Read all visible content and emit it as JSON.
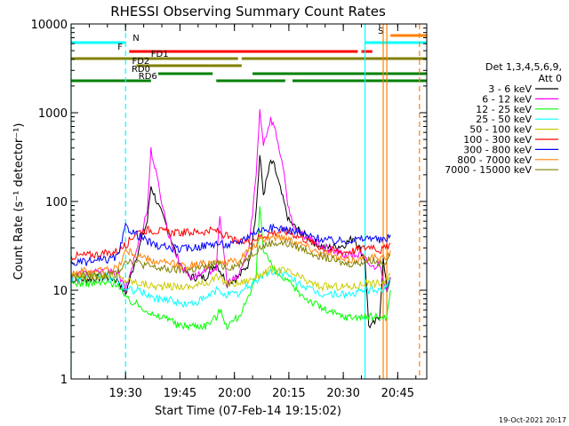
{
  "chart_data": {
    "type": "line",
    "title": "RHESSI Observing Summary Count Rates",
    "xlabel": "Start Time (07-Feb-14 19:15:02)",
    "ylabel": "Count Rate (s⁻¹ detector⁻¹)",
    "ylim": [
      1,
      10000
    ],
    "yscale": "log",
    "y_ticks": [
      1,
      10,
      100,
      1000,
      10000
    ],
    "y_tick_labels": [
      "1",
      "10",
      "100",
      "1000",
      "10000"
    ],
    "xlim": [
      "19:15",
      "20:53"
    ],
    "x_ticks": [
      "19:30",
      "19:45",
      "20:00",
      "20:15",
      "20:30",
      "20:45"
    ],
    "legend_title": [
      "Det 1,3,4,5,6,9,",
      "Att 0"
    ],
    "legend_position": "right",
    "timestamp": "19-Oct-2021 20:17",
    "series": [
      {
        "name": "3 - 6 keV",
        "color": "#000000",
        "x": [
          "19:15",
          "19:25",
          "19:28",
          "19:30",
          "19:33",
          "19:36",
          "19:37",
          "19:39",
          "19:42",
          "19:44",
          "19:46",
          "19:48",
          "19:52",
          "19:55",
          "19:58",
          "20:01",
          "20:04",
          "20:06",
          "20:07",
          "20:08",
          "20:10",
          "20:11",
          "20:13",
          "20:15",
          "20:17",
          "20:20",
          "20:22",
          "20:25",
          "20:30",
          "20:33",
          "20:36",
          "20:37",
          "20:38",
          "20:40",
          "20:41",
          "20:42",
          "20:43"
        ],
        "values": [
          13,
          14,
          13,
          9,
          24,
          60,
          150,
          90,
          45,
          25,
          17,
          14,
          14,
          20,
          12,
          14,
          20,
          80,
          330,
          120,
          280,
          250,
          120,
          60,
          50,
          40,
          35,
          30,
          32,
          40,
          22,
          4,
          4,
          5,
          22,
          10,
          14
        ]
      },
      {
        "name": "6 - 12 keV",
        "color": "#ff00ff",
        "x": [
          "19:15",
          "19:25",
          "19:28",
          "19:30",
          "19:33",
          "19:36",
          "19:37",
          "19:38",
          "19:40",
          "19:42",
          "19:44",
          "19:46",
          "19:48",
          "19:52",
          "19:55",
          "19:56",
          "19:58",
          "20:01",
          "20:04",
          "20:06",
          "20:07",
          "20:08",
          "20:10",
          "20:11",
          "20:13",
          "20:15",
          "20:17",
          "20:20",
          "20:25",
          "20:30",
          "20:35",
          "20:38",
          "20:40",
          "20:42",
          "20:43"
        ],
        "values": [
          15,
          16,
          15,
          10,
          28,
          80,
          380,
          250,
          100,
          40,
          25,
          17,
          14,
          16,
          18,
          65,
          12,
          14,
          30,
          200,
          1100,
          450,
          850,
          700,
          300,
          80,
          45,
          40,
          30,
          25,
          25,
          18,
          20,
          10,
          14
        ]
      },
      {
        "name": "12 - 25 keV",
        "color": "#00ff00",
        "x": [
          "19:15",
          "19:25",
          "19:28",
          "19:30",
          "19:33",
          "19:36",
          "19:38",
          "19:40",
          "19:42",
          "19:44",
          "19:46",
          "19:48",
          "19:52",
          "19:55",
          "19:56",
          "19:58",
          "20:01",
          "20:04",
          "20:06",
          "20:07",
          "20:08",
          "20:10",
          "20:11",
          "20:13",
          "20:15",
          "20:17",
          "20:20",
          "20:25",
          "20:30",
          "20:35",
          "20:38",
          "20:40",
          "20:42",
          "20:43"
        ],
        "values": [
          12,
          12,
          12,
          8,
          7,
          6,
          5,
          5,
          5,
          4,
          4,
          4,
          4,
          5,
          6,
          4,
          5,
          8,
          15,
          90,
          30,
          20,
          16,
          14,
          12,
          10,
          8,
          6,
          5,
          5,
          5,
          5,
          5,
          10
        ]
      },
      {
        "name": "25 - 50 keV",
        "color": "#00ffff",
        "x": [
          "19:15",
          "19:25",
          "19:28",
          "19:30",
          "19:33",
          "19:36",
          "19:38",
          "19:40",
          "19:42",
          "19:45",
          "19:48",
          "19:52",
          "19:55",
          "19:58",
          "20:01",
          "20:04",
          "20:07",
          "20:10",
          "20:13",
          "20:15",
          "20:18",
          "20:21",
          "20:24",
          "20:27",
          "20:30",
          "20:33",
          "20:36",
          "20:38",
          "20:40",
          "20:42",
          "20:43"
        ],
        "values": [
          14,
          14,
          13,
          10,
          10,
          9,
          8,
          8,
          8,
          7,
          7,
          8,
          10,
          9,
          9,
          11,
          14,
          16,
          16,
          14,
          12,
          10,
          9,
          9,
          9,
          9,
          10,
          10,
          10,
          11,
          13
        ]
      },
      {
        "name": "50 - 100 keV",
        "color": "#cccc00",
        "x": [
          "19:15",
          "19:25",
          "19:28",
          "19:30",
          "19:34",
          "19:38",
          "19:42",
          "19:45",
          "19:48",
          "19:52",
          "19:55",
          "19:58",
          "20:01",
          "20:04",
          "20:07",
          "20:10",
          "20:13",
          "20:15",
          "20:18",
          "20:21",
          "20:24",
          "20:27",
          "20:30",
          "20:33",
          "20:36",
          "20:38",
          "20:40",
          "20:42",
          "20:43"
        ],
        "values": [
          14,
          15,
          14,
          13,
          12,
          11,
          11,
          11,
          11,
          12,
          14,
          12,
          12,
          13,
          15,
          17,
          17,
          16,
          14,
          12,
          11,
          11,
          11,
          11,
          12,
          12,
          12,
          13,
          15
        ]
      },
      {
        "name": "100 - 300 keV",
        "color": "#ff0000",
        "x": [
          "19:15",
          "19:25",
          "19:28",
          "19:30",
          "19:33",
          "19:36",
          "19:40",
          "19:44",
          "19:48",
          "19:52",
          "19:55",
          "19:58",
          "20:01",
          "20:04",
          "20:07",
          "20:10",
          "20:13",
          "20:15",
          "20:18",
          "20:21",
          "20:24",
          "20:27",
          "20:30",
          "20:33",
          "20:36",
          "20:38",
          "20:40",
          "20:42",
          "20:43"
        ],
        "values": [
          24,
          26,
          28,
          32,
          45,
          48,
          46,
          44,
          45,
          46,
          47,
          40,
          34,
          36,
          40,
          44,
          46,
          45,
          40,
          35,
          30,
          28,
          27,
          28,
          30,
          32,
          28,
          30,
          34
        ]
      },
      {
        "name": "300 - 800 keV",
        "color": "#0000ff",
        "x": [
          "19:15",
          "19:25",
          "19:28",
          "19:30",
          "19:34",
          "19:38",
          "19:42",
          "19:45",
          "19:48",
          "19:52",
          "19:55",
          "19:58",
          "20:01",
          "20:04",
          "20:07",
          "20:10",
          "20:13",
          "20:15",
          "20:18",
          "20:21",
          "20:24",
          "20:27",
          "20:30",
          "20:33",
          "20:36",
          "20:38",
          "20:40",
          "20:42",
          "20:43"
        ],
        "values": [
          20,
          22,
          24,
          52,
          40,
          32,
          30,
          29,
          30,
          32,
          34,
          32,
          34,
          42,
          48,
          50,
          50,
          48,
          44,
          40,
          38,
          36,
          36,
          37,
          38,
          40,
          36,
          38,
          42
        ]
      },
      {
        "name": "800 - 7000 keV",
        "color": "#ff8000",
        "x": [
          "19:15",
          "19:25",
          "19:28",
          "19:30",
          "19:34",
          "19:38",
          "19:42",
          "19:45",
          "19:48",
          "19:52",
          "19:55",
          "19:58",
          "20:01",
          "20:04",
          "20:07",
          "20:10",
          "20:13",
          "20:15",
          "20:18",
          "20:21",
          "20:24",
          "20:27",
          "20:30",
          "20:33",
          "20:36",
          "20:38",
          "20:40",
          "20:42",
          "20:43"
        ],
        "values": [
          16,
          17,
          18,
          28,
          24,
          21,
          20,
          19,
          19,
          20,
          22,
          20,
          22,
          28,
          36,
          40,
          40,
          38,
          34,
          30,
          26,
          24,
          22,
          22,
          23,
          24,
          22,
          24,
          28
        ]
      },
      {
        "name": "7000 - 15000 keV",
        "color": "#808000",
        "x": [
          "19:15",
          "19:25",
          "19:28",
          "19:30",
          "19:34",
          "19:38",
          "19:42",
          "19:45",
          "19:48",
          "19:52",
          "19:55",
          "19:58",
          "20:01",
          "20:04",
          "20:07",
          "20:10",
          "20:13",
          "20:15",
          "20:18",
          "20:21",
          "20:24",
          "20:27",
          "20:30",
          "20:33",
          "20:36",
          "20:38",
          "20:40",
          "20:42",
          "20:43"
        ],
        "values": [
          14,
          15,
          16,
          22,
          20,
          18,
          17,
          17,
          17,
          18,
          20,
          18,
          19,
          24,
          30,
          34,
          34,
          33,
          30,
          27,
          24,
          22,
          20,
          20,
          21,
          22,
          20,
          22,
          25
        ]
      }
    ],
    "flags": [
      {
        "label": "N",
        "color": "#00ffff",
        "segments": [
          [
            "19:15",
            "19:30"
          ],
          [
            "20:36",
            "20:53"
          ]
        ]
      },
      {
        "label": "F",
        "color": "#ff0000",
        "segments": [
          [
            "19:31",
            "20:34"
          ],
          [
            "20:35",
            "20:38"
          ]
        ]
      },
      {
        "label": "FD1",
        "color": "#808000",
        "segments": [
          [
            "19:15",
            "20:01"
          ],
          [
            "20:02",
            "20:53"
          ]
        ]
      },
      {
        "label": "FD2",
        "color": "#808000",
        "segments": [
          [
            "19:33",
            "20:02"
          ]
        ]
      },
      {
        "label": "RD0",
        "color": "#008000",
        "segments": [
          [
            "19:39",
            "19:54"
          ],
          [
            "20:05",
            "20:53"
          ]
        ]
      },
      {
        "label": "RD6",
        "color": "#008000",
        "segments": [
          [
            "19:15",
            "19:37"
          ],
          [
            "19:55",
            "20:14"
          ],
          [
            "20:16",
            "20:53"
          ]
        ]
      },
      {
        "label": "S",
        "color": "#ff8000",
        "segments": [
          [
            "20:43",
            "20:53"
          ]
        ]
      }
    ],
    "vlines": [
      {
        "x": "19:15",
        "color": "#00ffff",
        "style": "solid"
      },
      {
        "x": "19:30",
        "color": "#00ffff",
        "style": "dashed"
      },
      {
        "x": "20:36",
        "color": "#00ffff",
        "style": "solid"
      },
      {
        "x": "20:41",
        "color": "#ff8000",
        "style": "solid"
      },
      {
        "x": "20:42",
        "color": "#ff8000",
        "style": "solid"
      },
      {
        "x": "20:51",
        "color": "#ff8000",
        "style": "dashed"
      }
    ]
  }
}
